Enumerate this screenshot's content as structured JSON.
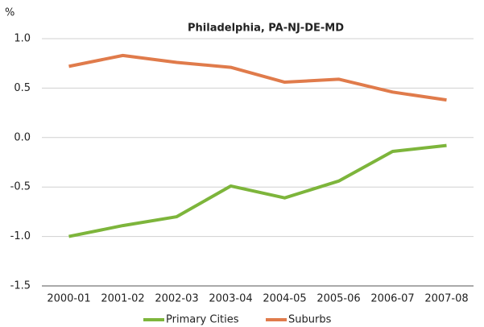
{
  "chart_data": {
    "type": "line",
    "title": "Philadelphia, PA-NJ-DE-MD",
    "y_label": "%",
    "categories": [
      "2000-01",
      "2001-02",
      "2002-03",
      "2003-04",
      "2004-05",
      "2005-06",
      "2006-07",
      "2007-08"
    ],
    "series": [
      {
        "name": "Primary Cities",
        "color": "#7db53b",
        "values": [
          -1.0,
          -0.89,
          -0.8,
          -0.49,
          -0.61,
          -0.44,
          -0.14,
          -0.08
        ]
      },
      {
        "name": "Suburbs",
        "color": "#e07b4b",
        "values": [
          0.72,
          0.83,
          0.76,
          0.71,
          0.56,
          0.59,
          0.46,
          0.38
        ]
      }
    ],
    "ylim": [
      -1.5,
      1.0
    ],
    "yticks": [
      {
        "value": -1.5,
        "label": "-1.5"
      },
      {
        "value": -1.0,
        "label": "-1.0"
      },
      {
        "value": -0.5,
        "label": "-0.5"
      },
      {
        "value": 0,
        "label": "0.0"
      },
      {
        "value": 0.5,
        "label": "0.5"
      },
      {
        "value": 1.0,
        "label": "1.0"
      }
    ],
    "grid": true,
    "legend": "bottom"
  }
}
